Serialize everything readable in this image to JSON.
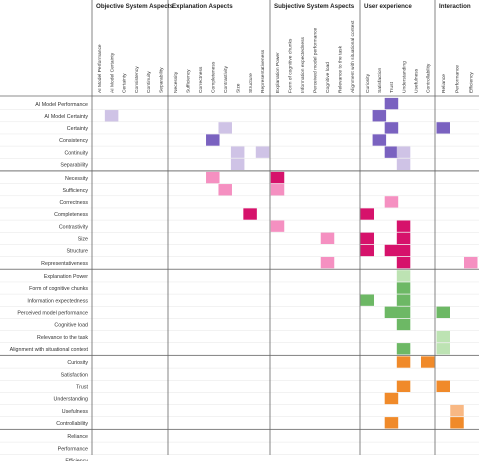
{
  "groups": [
    {
      "name": "Objective System Aspects",
      "columns": [
        "AI Model Performance",
        "AI Model Certainty",
        "Certainty",
        "Consistency",
        "Continuity",
        "Separability"
      ]
    },
    {
      "name": "Explanation Aspects",
      "columns": [
        "Necessity",
        "Sufficiency",
        "Correctness",
        "Completeness",
        "Contrastivity",
        "Size",
        "Structure",
        "Representativeness"
      ]
    },
    {
      "name": "Subjective System Aspects",
      "columns": [
        "Explanation Power",
        "Form of cognitive chunks",
        "Information expectedness",
        "Perceived model performance",
        "Cognitive load",
        "Relevance to the task",
        "Alignment with situational context"
      ]
    },
    {
      "name": "User experience",
      "columns": [
        "Curiosity",
        "Satisfaction",
        "Trust",
        "Understanding",
        "Usefulness",
        "Controllability"
      ]
    },
    {
      "name": "Interaction",
      "columns": [
        "Reliance",
        "Performance",
        "Efficiency"
      ]
    }
  ],
  "rows": [
    "AI Model Performance",
    "AI Model Certainty",
    "Certainty",
    "Consistency",
    "Continuity",
    "Separability",
    "Necessity",
    "Sufficiency",
    "Correctness",
    "Completeness",
    "Contrastivity",
    "Size",
    "Structure",
    "Representativeness",
    "Explanation Power",
    "Form of cognitive chunks",
    "Information expectedness",
    "Perceived model performance",
    "Cognitive load",
    "Relevance to the task",
    "Alignment with situational context",
    "Curiosity",
    "Satisfaction",
    "Trust",
    "Understanding",
    "Usefulness",
    "Controllability",
    "Reliance",
    "Performance",
    "Efficiency"
  ],
  "row_group_sizes": [
    6,
    8,
    7,
    6,
    3
  ],
  "colors": {
    "purple_dark": "#7a62c0",
    "purple_light": "#cfc3e6",
    "pink_dark": "#d6126b",
    "pink_light": "#f590c1",
    "green_dark": "#6db865",
    "green_light": "#bde3b3",
    "orange_dark": "#f08a2a",
    "orange_light": "#f8b884"
  },
  "cells": [
    {
      "r": 0,
      "c": 23,
      "color": "purple_dark"
    },
    {
      "r": 1,
      "c": 1,
      "color": "purple_light"
    },
    {
      "r": 1,
      "c": 22,
      "color": "purple_dark"
    },
    {
      "r": 2,
      "c": 10,
      "color": "purple_light"
    },
    {
      "r": 2,
      "c": 23,
      "color": "purple_dark"
    },
    {
      "r": 2,
      "c": 27,
      "color": "purple_dark"
    },
    {
      "r": 3,
      "c": 9,
      "color": "purple_dark"
    },
    {
      "r": 3,
      "c": 22,
      "color": "purple_dark"
    },
    {
      "r": 4,
      "c": 11,
      "color": "purple_light"
    },
    {
      "r": 4,
      "c": 13,
      "color": "purple_light"
    },
    {
      "r": 4,
      "c": 23,
      "color": "purple_dark"
    },
    {
      "r": 4,
      "c": 24,
      "color": "purple_light"
    },
    {
      "r": 5,
      "c": 11,
      "color": "purple_light"
    },
    {
      "r": 5,
      "c": 24,
      "color": "purple_light"
    },
    {
      "r": 6,
      "c": 14,
      "color": "pink_dark"
    },
    {
      "r": 6,
      "c": 9,
      "color": "pink_light"
    },
    {
      "r": 7,
      "c": 10,
      "color": "pink_light"
    },
    {
      "r": 7,
      "c": 14,
      "color": "pink_light"
    },
    {
      "r": 8,
      "c": 23,
      "color": "pink_light"
    },
    {
      "r": 9,
      "c": 12,
      "color": "pink_dark"
    },
    {
      "r": 9,
      "c": 21,
      "color": "pink_dark"
    },
    {
      "r": 10,
      "c": 14,
      "color": "pink_light"
    },
    {
      "r": 10,
      "c": 24,
      "color": "pink_dark"
    },
    {
      "r": 11,
      "c": 18,
      "color": "pink_light"
    },
    {
      "r": 11,
      "c": 21,
      "color": "pink_dark"
    },
    {
      "r": 11,
      "c": 24,
      "color": "pink_dark"
    },
    {
      "r": 12,
      "c": 21,
      "color": "pink_dark"
    },
    {
      "r": 12,
      "c": 23,
      "color": "pink_dark"
    },
    {
      "r": 12,
      "c": 24,
      "color": "pink_dark"
    },
    {
      "r": 13,
      "c": 18,
      "color": "pink_light"
    },
    {
      "r": 13,
      "c": 24,
      "color": "pink_dark"
    },
    {
      "r": 13,
      "c": 29,
      "color": "pink_light"
    },
    {
      "r": 14,
      "c": 24,
      "color": "green_light"
    },
    {
      "r": 15,
      "c": 24,
      "color": "green_dark"
    },
    {
      "r": 16,
      "c": 21,
      "color": "green_dark"
    },
    {
      "r": 16,
      "c": 24,
      "color": "green_dark"
    },
    {
      "r": 17,
      "c": 23,
      "color": "green_dark"
    },
    {
      "r": 17,
      "c": 24,
      "color": "green_dark"
    },
    {
      "r": 17,
      "c": 27,
      "color": "green_dark"
    },
    {
      "r": 18,
      "c": 24,
      "color": "green_dark"
    },
    {
      "r": 19,
      "c": 27,
      "color": "green_light"
    },
    {
      "r": 20,
      "c": 24,
      "color": "green_dark"
    },
    {
      "r": 20,
      "c": 27,
      "color": "green_light"
    },
    {
      "r": 21,
      "c": 24,
      "color": "orange_dark"
    },
    {
      "r": 21,
      "c": 26,
      "color": "orange_dark"
    },
    {
      "r": 23,
      "c": 24,
      "color": "orange_dark"
    },
    {
      "r": 23,
      "c": 27,
      "color": "orange_dark"
    },
    {
      "r": 24,
      "c": 23,
      "color": "orange_dark"
    },
    {
      "r": 25,
      "c": 28,
      "color": "orange_light"
    },
    {
      "r": 26,
      "c": 23,
      "color": "orange_dark"
    },
    {
      "r": 26,
      "c": 28,
      "color": "orange_dark"
    }
  ]
}
